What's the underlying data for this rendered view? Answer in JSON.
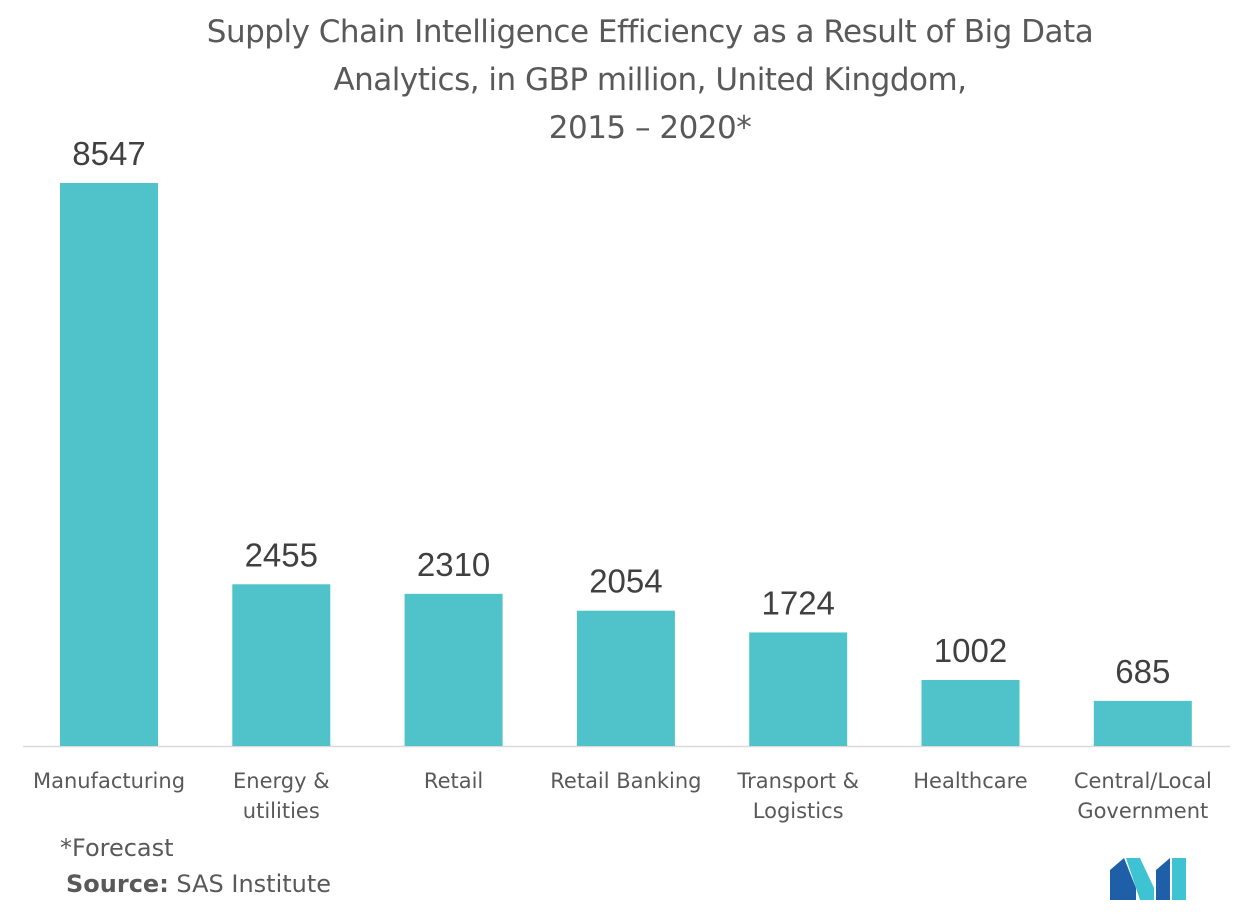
{
  "chart_data": {
    "type": "bar",
    "title_lines": [
      "Supply Chain Intelligence Efficiency as a Result of Big Data",
      "Analytics, in GBP million, United Kingdom,",
      "2015 – 2020*"
    ],
    "categories": [
      [
        "Manufacturing"
      ],
      [
        "Energy &",
        "utilities"
      ],
      [
        "Retail"
      ],
      [
        "Retail Banking"
      ],
      [
        "Transport &",
        "Logistics"
      ],
      [
        "Healthcare"
      ],
      [
        "Central/Local",
        "Government"
      ]
    ],
    "values": [
      8547,
      2455,
      2310,
      2054,
      1724,
      1002,
      685
    ],
    "ylim": [
      0,
      8547
    ],
    "bar_color": "#4fc3c9",
    "axis_color": "#d9d9d9",
    "grid": false
  },
  "footnote": "*Forecast",
  "source": {
    "label": "Source:",
    "text": " SAS Institute"
  },
  "logo": {
    "icon": "mordor-intelligence-logo",
    "colors": [
      "#1f5fa8",
      "#3ec3d3"
    ]
  }
}
